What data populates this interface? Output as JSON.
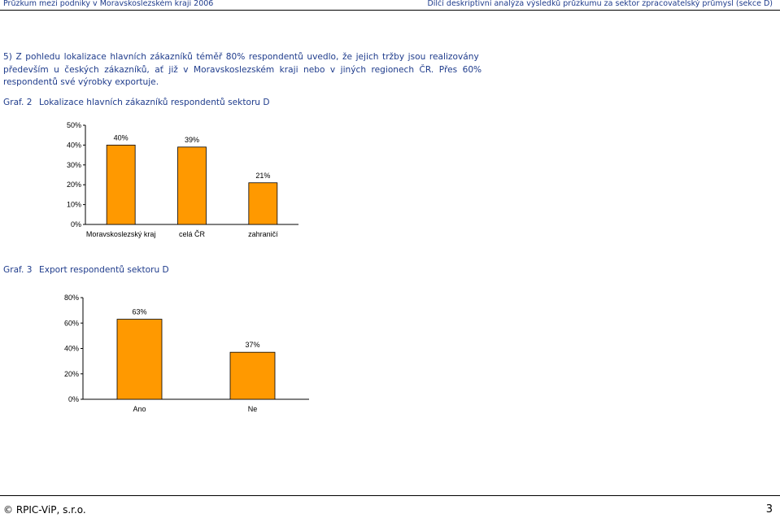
{
  "header": {
    "left": "Průzkum mezi podniky v Moravskoslezském kraji 2006",
    "right": "Dílčí deskriptivní analýza výsledků průzkumu za sektor zpracovatelský průmysl (sekce D)"
  },
  "paragraph": {
    "line1": "5) Z pohledu lokalizace hlavních zákazníků téměř 80% respondentů uvedlo, že jejich tržby jsou realizovány",
    "line2": "především u českých zákazníků, ať již v Moravskoslezském kraji nebo v jiných regionech ČR. Přes 60%",
    "line3": "respondentů své výrobky exportuje."
  },
  "graf2": {
    "number": "Graf. 2",
    "title": "Lokalizace hlavních zákazníků respondentů sektoru D"
  },
  "graf3": {
    "number": "Graf. 3",
    "title": "Export respondentů sektoru D"
  },
  "chart_data": [
    {
      "type": "bar",
      "categories": [
        "Moravskoslezský kraj",
        "celá ČR",
        "zahraničí"
      ],
      "values": [
        40,
        39,
        21
      ],
      "data_labels": [
        "40%",
        "39%",
        "21%"
      ],
      "yticks": [
        "0%",
        "10%",
        "20%",
        "30%",
        "40%",
        "50%"
      ],
      "ylim": [
        0,
        50
      ],
      "bar_color": "#ff9900",
      "grid": false,
      "legend": "none"
    },
    {
      "type": "bar",
      "categories": [
        "Ano",
        "Ne"
      ],
      "values": [
        63,
        37
      ],
      "data_labels": [
        "63%",
        "37%"
      ],
      "yticks": [
        "0%",
        "20%",
        "40%",
        "60%",
        "80%"
      ],
      "ylim": [
        0,
        80
      ],
      "bar_color": "#ff9900",
      "grid": false,
      "legend": "none"
    }
  ],
  "footer": {
    "copyright": "© RPIC-ViP, s.r.o.",
    "page": "3"
  }
}
